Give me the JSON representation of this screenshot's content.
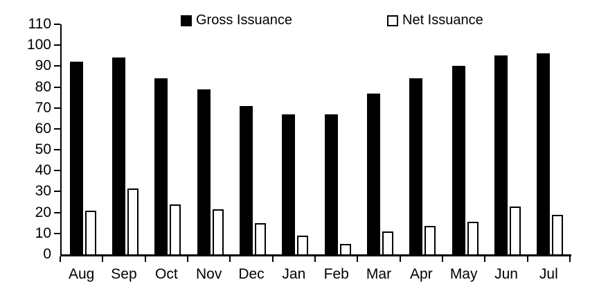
{
  "chart_data": {
    "type": "bar",
    "title": "",
    "categories": [
      "Aug",
      "Sep",
      "Oct",
      "Nov",
      "Dec",
      "Jan",
      "Feb",
      "Mar",
      "Apr",
      "May",
      "Jun",
      "Jul"
    ],
    "series": [
      {
        "name": "Gross Issuance",
        "values": [
          92,
          94,
          84,
          79,
          71,
          67,
          67,
          77,
          84,
          90,
          95,
          96
        ],
        "fill": "#000000",
        "border": "#000000"
      },
      {
        "name": "Net Issuance",
        "values": [
          21,
          31.5,
          24,
          21.5,
          15,
          9,
          5,
          11,
          13.5,
          15.5,
          23,
          19
        ],
        "fill": "#ffffff",
        "border": "#000000"
      }
    ],
    "xlabel": "",
    "ylabel": "",
    "ylim": [
      0,
      110
    ],
    "ytick_step": 10,
    "ytick_labels": [
      "0",
      "10",
      "20",
      "30",
      "40",
      "50",
      "60",
      "70",
      "80",
      "90",
      "100",
      "110"
    ],
    "grid": false,
    "legend_position": "top",
    "axis_color": "#000000",
    "background": "#ffffff"
  }
}
